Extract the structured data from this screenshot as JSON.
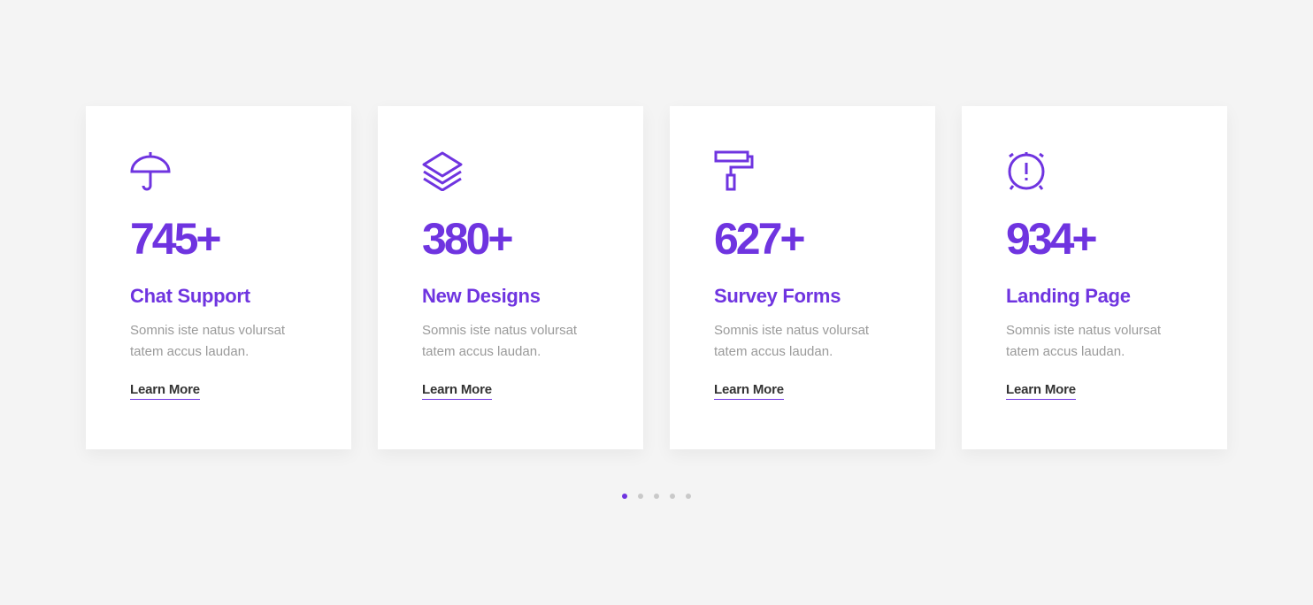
{
  "accent": "#6f34e0",
  "cards": [
    {
      "icon": "umbrella-icon",
      "number": "745+",
      "title": "Chat Support",
      "description": "Somnis iste natus volursat tatem accus laudan.",
      "link": "Learn More"
    },
    {
      "icon": "layers-icon",
      "number": "380+",
      "title": "New Designs",
      "description": "Somnis iste natus volursat tatem accus laudan.",
      "link": "Learn More"
    },
    {
      "icon": "paint-roller-icon",
      "number": "627+",
      "title": "Survey Forms",
      "description": "Somnis iste natus volursat tatem accus laudan.",
      "link": "Learn More"
    },
    {
      "icon": "alarm-clock-icon",
      "number": "934+",
      "title": "Landing Page",
      "description": "Somnis iste natus volursat tatem accus laudan.",
      "link": "Learn More"
    }
  ],
  "pagination": {
    "pages": 5,
    "active": 1
  }
}
